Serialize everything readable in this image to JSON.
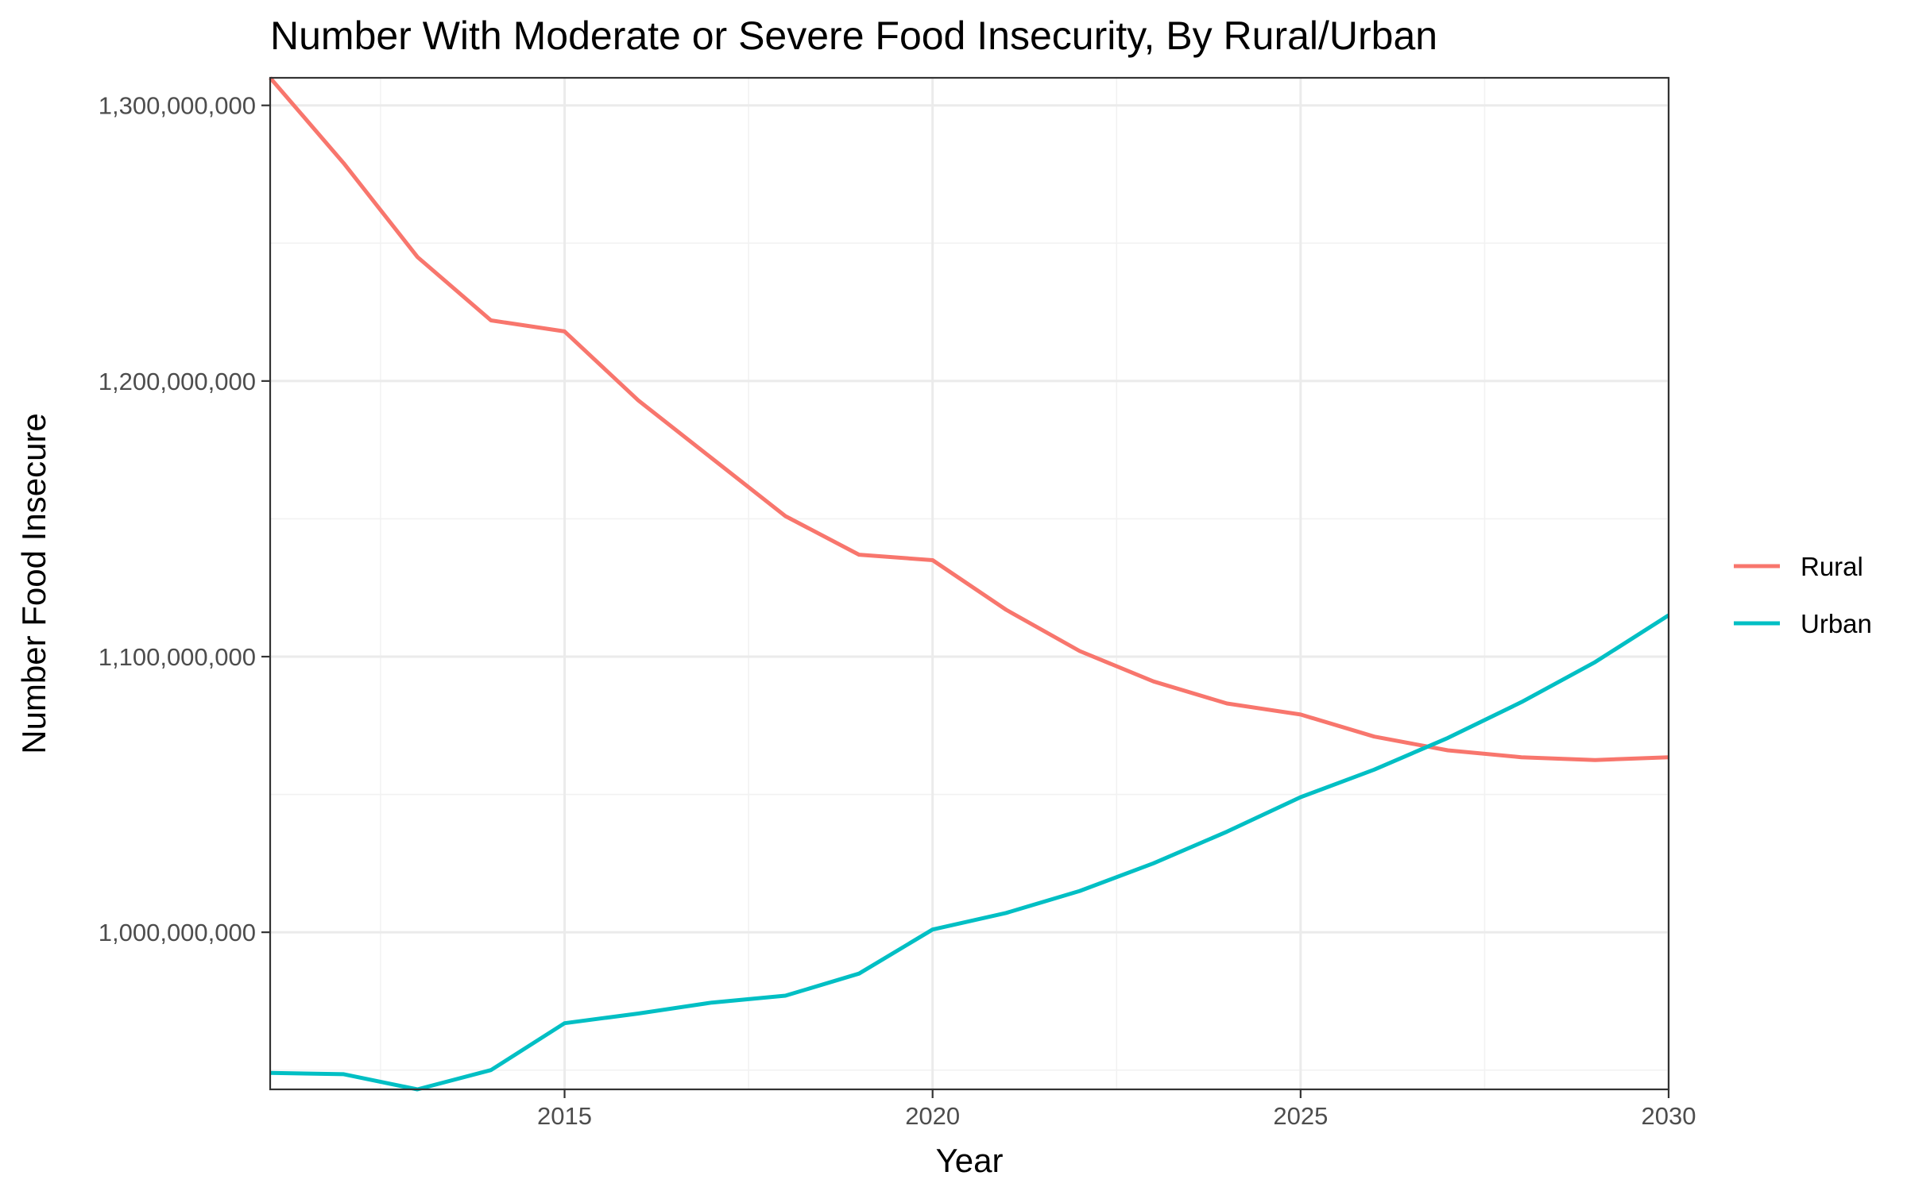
{
  "chart_data": {
    "type": "line",
    "title": "Number With Moderate or Severe Food Insecurity, By Rural/Urban",
    "xlabel": "Year",
    "ylabel": "Number Food Insecure",
    "xlim": [
      2011,
      2030
    ],
    "ylim": [
      943000000,
      1310000000
    ],
    "x_ticks": [
      2015,
      2020,
      2025,
      2030
    ],
    "x_tick_labels": [
      "2015",
      "2020",
      "2025",
      "2030"
    ],
    "x_minor": [
      2012.5,
      2017.5,
      2022.5,
      2027.5
    ],
    "y_ticks": [
      1000000000,
      1100000000,
      1200000000,
      1300000000
    ],
    "y_tick_labels": [
      "1,000,000,000",
      "1,100,000,000",
      "1,200,000,000",
      "1,300,000,000"
    ],
    "y_minor": [
      950000000,
      1050000000,
      1150000000,
      1250000000
    ],
    "grid": true,
    "legend_position": "right",
    "x": [
      2011,
      2012,
      2013,
      2014,
      2015,
      2016,
      2017,
      2018,
      2019,
      2020,
      2021,
      2022,
      2023,
      2024,
      2025,
      2026,
      2027,
      2028,
      2029,
      2030
    ],
    "series": [
      {
        "name": "Rural",
        "color": "#F8766D",
        "values": [
          1310000000,
          1279000000,
          1245000000,
          1222000000,
          1218000000,
          1193000000,
          1172000000,
          1151000000,
          1137000000,
          1135000000,
          1117000000,
          1102000000,
          1091000000,
          1083000000,
          1079000000,
          1071000000,
          1066000000,
          1063500000,
          1062500000,
          1063500000
        ]
      },
      {
        "name": "Urban",
        "color": "#00BFC4",
        "values": [
          949000000,
          948500000,
          943000000,
          950000000,
          967000000,
          970500000,
          974500000,
          977000000,
          985000000,
          1001000000,
          1007000000,
          1015000000,
          1025000000,
          1036500000,
          1049000000,
          1059000000,
          1070500000,
          1083500000,
          1098000000,
          1115000000
        ]
      }
    ]
  }
}
